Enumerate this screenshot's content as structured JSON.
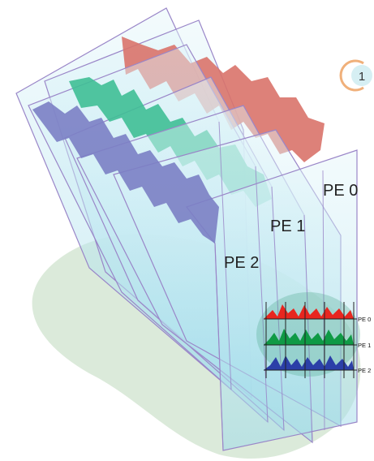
{
  "diagram": {
    "step_badge": "1",
    "panel_labels": [
      "PE 0",
      "PE 1",
      "PE 2"
    ],
    "inset_labels": [
      "PE 0",
      "PE 1",
      "PE 2"
    ]
  },
  "colors": {
    "pe0": "#d9736a",
    "pe1": "#3fbf95",
    "pe2": "#7b7fc4",
    "inset_pe0": "#e8261f",
    "inset_pe1": "#0f9a45",
    "inset_pe2": "#2b3fa8",
    "shadow": "#d7e8d6",
    "panel_fill": "#c8ecf4",
    "panel_edge": "#9a86c8",
    "badge_ring": "#f0b07a",
    "badge_fill": "#d6eff3"
  }
}
